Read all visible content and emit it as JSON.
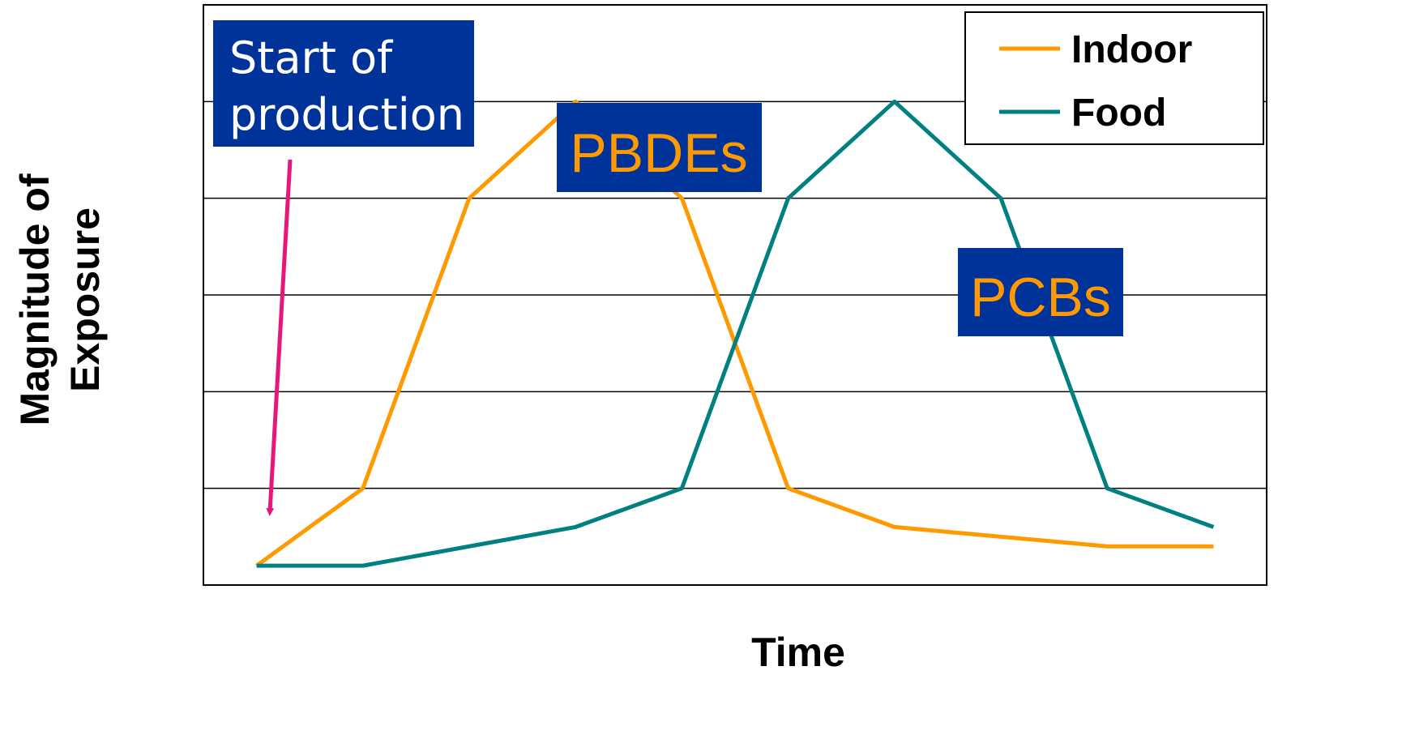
{
  "chart_data": {
    "type": "line",
    "x_label": "Time",
    "y_label": [
      "Magnitude of",
      "Exposure"
    ],
    "x": [
      1,
      2,
      3,
      4,
      5,
      6,
      7,
      8,
      9,
      10
    ],
    "xlim": [
      0.5,
      10.5
    ],
    "ylim": [
      0,
      6
    ],
    "yticks": [
      1,
      2,
      3,
      4,
      5
    ],
    "grid": true,
    "legend": "upper right",
    "series": [
      {
        "name": "Indoor",
        "color": "#ff9900",
        "values": [
          0.2,
          1,
          4,
          5,
          4,
          1,
          0.6,
          0.5,
          0.4,
          0.4
        ]
      },
      {
        "name": "Food",
        "color": "#008080",
        "values": [
          0.2,
          0.2,
          0.4,
          0.6,
          1,
          4,
          5,
          4,
          1,
          0.6
        ]
      }
    ],
    "annotations": [
      {
        "text": [
          "Start of",
          "production"
        ]
      },
      {
        "text": [
          "PBDEs"
        ]
      },
      {
        "text": [
          "PCBs"
        ]
      }
    ]
  }
}
